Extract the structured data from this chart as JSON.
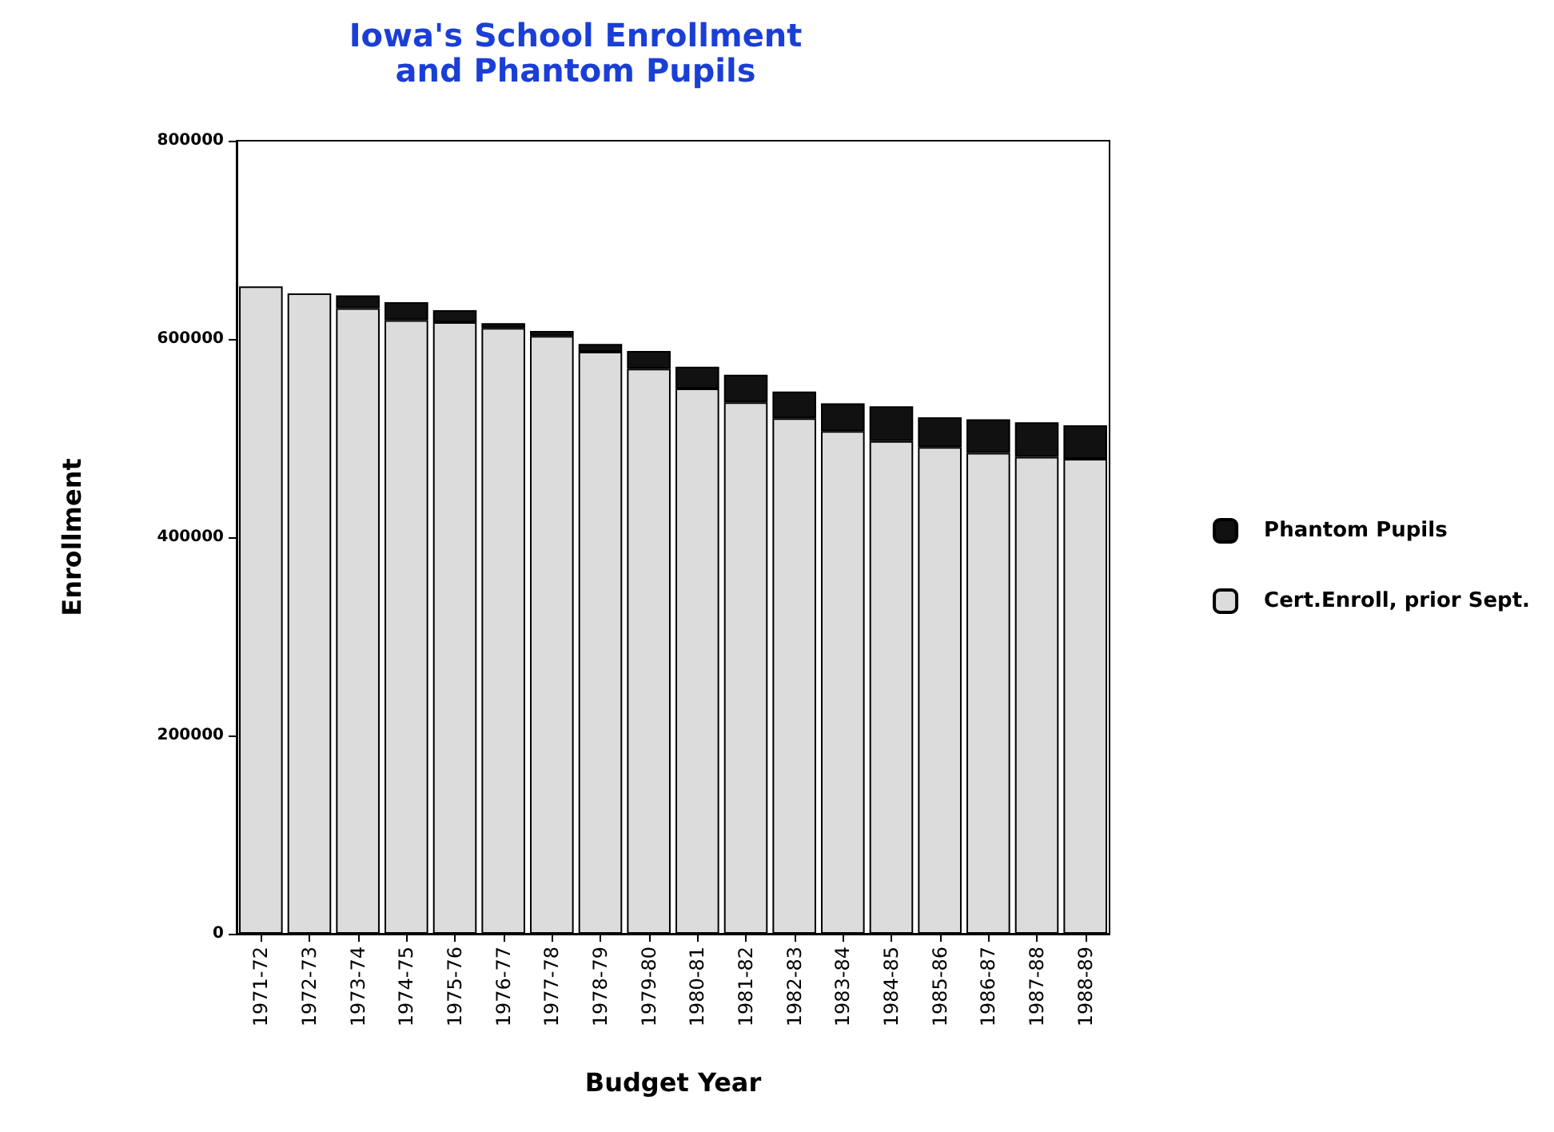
{
  "chart_data": {
    "type": "bar",
    "title": "Iowa's School Enrollment\nand Phantom Pupils",
    "xlabel": "Budget Year",
    "ylabel": "Enrollment",
    "categories": [
      "1971-72",
      "1972-73",
      "1973-74",
      "1974-75",
      "1975-76",
      "1976-77",
      "1977-78",
      "1978-79",
      "1979-80",
      "1980-81",
      "1981-82",
      "1982-83",
      "1983-84",
      "1984-85",
      "1985-86",
      "1986-87",
      "1987-88",
      "1988-89"
    ],
    "series": [
      {
        "name": "Cert.Enroll, prior Sept.",
        "color": "#dcdcdc",
        "values": [
          653000,
          646000,
          631000,
          619000,
          617000,
          611000,
          603000,
          587000,
          570000,
          550000,
          536000,
          520000,
          507000,
          497000,
          491000,
          485000,
          481000,
          479000
        ]
      },
      {
        "name": "Phantom Pupils",
        "color": "#111111",
        "values": [
          0,
          0,
          13000,
          18000,
          12000,
          5000,
          5000,
          8000,
          18000,
          22000,
          28000,
          27000,
          28000,
          35000,
          30000,
          34000,
          35000,
          34000
        ]
      }
    ],
    "stacked": true,
    "ylim": [
      0,
      800000
    ],
    "yticks": [
      0,
      200000,
      400000,
      600000,
      800000
    ],
    "grid": false,
    "legend": "right"
  }
}
